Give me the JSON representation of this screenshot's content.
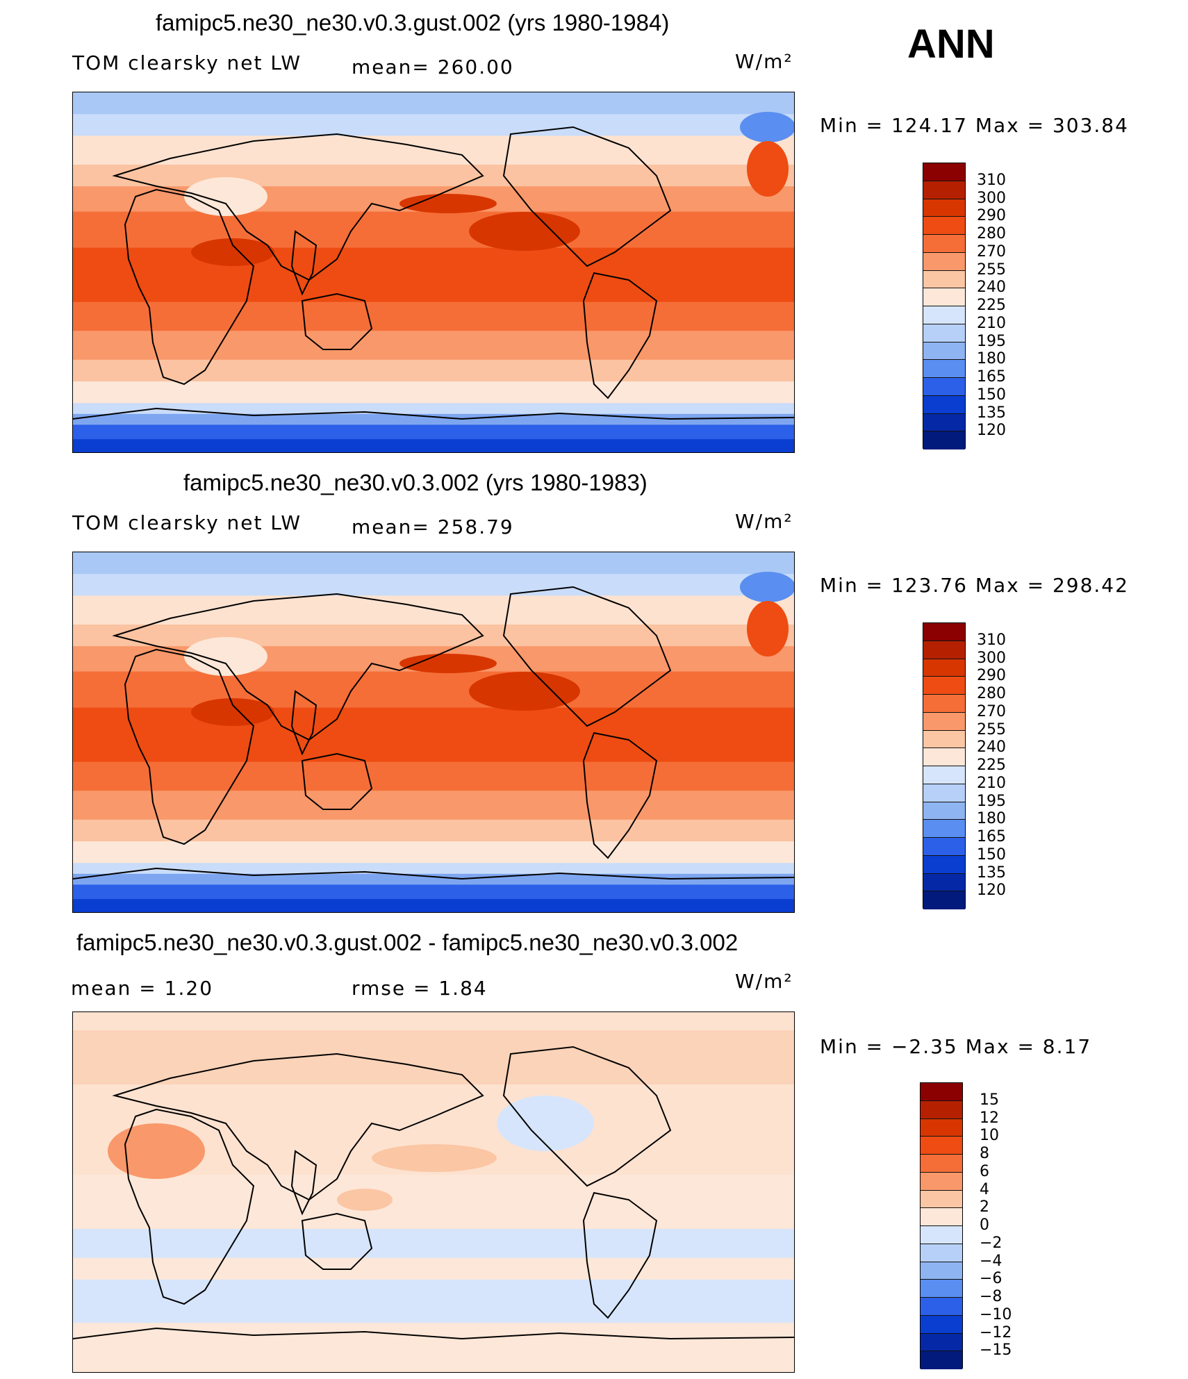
{
  "header": {
    "season": "ANN"
  },
  "panels": [
    {
      "title": "famipc5.ne30_ne30.v0.3.gust.002 (yrs 1980-1984)",
      "left_label": "TOM clearsky net LW",
      "mean_text": "mean= 260.00",
      "units": "W/m²",
      "minmax": "Min  =  124.17  Max  =  303.84",
      "colorbar": {
        "labels": [
          "310",
          "300",
          "290",
          "280",
          "270",
          "255",
          "240",
          "225",
          "210",
          "195",
          "180",
          "165",
          "150",
          "135",
          "120"
        ],
        "colors": [
          "#8b0000",
          "#b52100",
          "#d83600",
          "#ee4c12",
          "#f56e38",
          "#f9986a",
          "#fbc6a4",
          "#fde7d8",
          "#d6e5fb",
          "#b7d0f7",
          "#8fb4f2",
          "#5a8ef0",
          "#2c60e8",
          "#0a3ed1",
          "#0528a6",
          "#021a7c"
        ]
      },
      "rows": [
        {
          "y": 0.0,
          "c": "#a9c8f6"
        },
        {
          "y": 0.06,
          "c": "#c9dcf9"
        },
        {
          "y": 0.12,
          "c": "#fde2d0"
        },
        {
          "y": 0.2,
          "c": "#fbc3a1"
        },
        {
          "y": 0.26,
          "c": "#f9986a"
        },
        {
          "y": 0.33,
          "c": "#f56e38"
        },
        {
          "y": 0.43,
          "c": "#ee4c12"
        },
        {
          "y": 0.58,
          "c": "#f56e38"
        },
        {
          "y": 0.66,
          "c": "#f9986a"
        },
        {
          "y": 0.74,
          "c": "#fbc3a1"
        },
        {
          "y": 0.8,
          "c": "#fde7d8"
        },
        {
          "y": 0.86,
          "c": "#c9dcf9"
        },
        {
          "y": 0.89,
          "c": "#7ea6f0"
        },
        {
          "y": 0.92,
          "c": "#2c60e8"
        },
        {
          "y": 0.96,
          "c": "#0a3ed1"
        }
      ]
    },
    {
      "title": "famipc5.ne30_ne30.v0.3.002 (yrs 1980-1983)",
      "left_label": "TOM clearsky net LW",
      "mean_text": "mean= 258.79",
      "units": "W/m²",
      "minmax": "Min  =  123.76  Max  =  298.42",
      "colorbar": {
        "labels": [
          "310",
          "300",
          "290",
          "280",
          "270",
          "255",
          "240",
          "225",
          "210",
          "195",
          "180",
          "165",
          "150",
          "135",
          "120"
        ],
        "colors": [
          "#8b0000",
          "#b52100",
          "#d83600",
          "#ee4c12",
          "#f56e38",
          "#f9986a",
          "#fbc6a4",
          "#fde7d8",
          "#d6e5fb",
          "#b7d0f7",
          "#8fb4f2",
          "#5a8ef0",
          "#2c60e8",
          "#0a3ed1",
          "#0528a6",
          "#021a7c"
        ]
      },
      "rows": [
        {
          "y": 0.0,
          "c": "#a9c8f6"
        },
        {
          "y": 0.06,
          "c": "#c9dcf9"
        },
        {
          "y": 0.12,
          "c": "#fde2d0"
        },
        {
          "y": 0.2,
          "c": "#fbc3a1"
        },
        {
          "y": 0.26,
          "c": "#f9986a"
        },
        {
          "y": 0.33,
          "c": "#f56e38"
        },
        {
          "y": 0.43,
          "c": "#ee4c12"
        },
        {
          "y": 0.58,
          "c": "#f56e38"
        },
        {
          "y": 0.66,
          "c": "#f9986a"
        },
        {
          "y": 0.74,
          "c": "#fbc3a1"
        },
        {
          "y": 0.8,
          "c": "#fde7d8"
        },
        {
          "y": 0.86,
          "c": "#c9dcf9"
        },
        {
          "y": 0.89,
          "c": "#7ea6f0"
        },
        {
          "y": 0.92,
          "c": "#2c60e8"
        },
        {
          "y": 0.96,
          "c": "#0a3ed1"
        }
      ]
    },
    {
      "title": "famipc5.ne30_ne30.v0.3.gust.002 - famipc5.ne30_ne30.v0.3.002",
      "left_label": "mean  =     1.20",
      "mean_text": "rmse  =     1.84",
      "units": "W/m²",
      "minmax": "Min  =    −2.35  Max  =     8.17",
      "colorbar": {
        "labels": [
          "15",
          "12",
          "10",
          "8",
          "6",
          "4",
          "2",
          "0",
          "−2",
          "−4",
          "−6",
          "−8",
          "−10",
          "−12",
          "−15"
        ],
        "colors": [
          "#8b0000",
          "#b52100",
          "#d83600",
          "#ee4c12",
          "#f56e38",
          "#f9986a",
          "#fbc6a4",
          "#fde7d8",
          "#d6e5fb",
          "#b7d0f7",
          "#8fb4f2",
          "#5a8ef0",
          "#2c60e8",
          "#0a3ed1",
          "#0528a6",
          "#021a7c"
        ]
      },
      "rows": [
        {
          "y": 0.0,
          "c": "#fde2d0"
        },
        {
          "y": 0.05,
          "c": "#fbd3b8"
        },
        {
          "y": 0.2,
          "c": "#fde2d0"
        },
        {
          "y": 0.45,
          "c": "#fde7d8"
        },
        {
          "y": 0.6,
          "c": "#d6e5fb"
        },
        {
          "y": 0.68,
          "c": "#fde7d8"
        },
        {
          "y": 0.74,
          "c": "#d6e5fb"
        },
        {
          "y": 0.86,
          "c": "#fde7d8"
        }
      ]
    }
  ]
}
